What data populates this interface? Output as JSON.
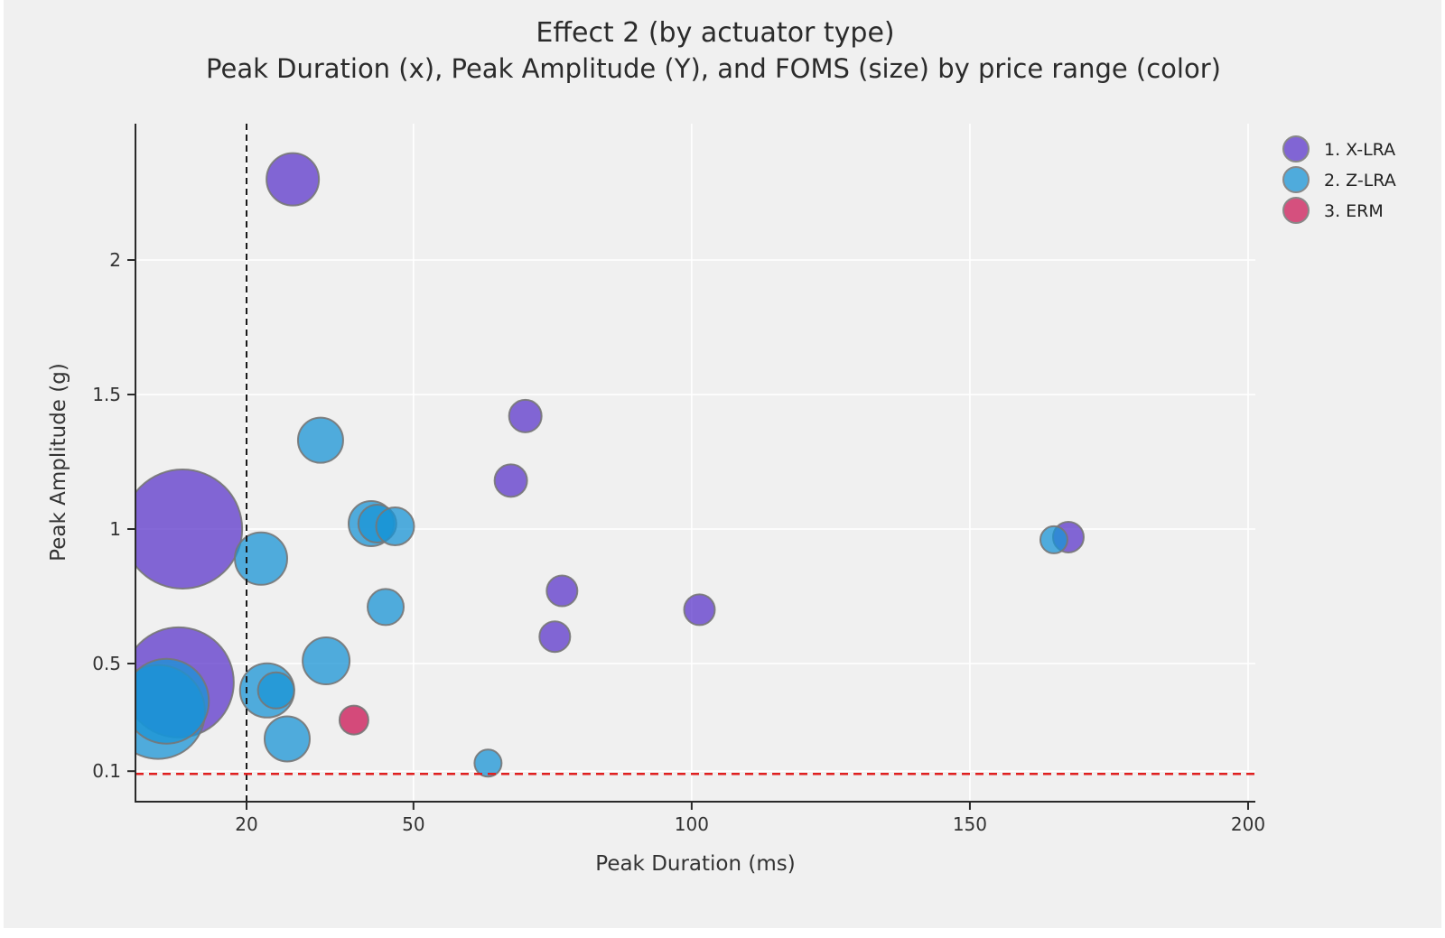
{
  "figure": {
    "title": "Effect 2 (by actuator type)",
    "subtitle": "Peak Duration (x), Peak Amplitude (Y), and FOMS (size) by price range (color)",
    "background": "#f0f0f0"
  },
  "axes": {
    "x": {
      "label": "Peak Duration (ms)",
      "ticks": [
        {
          "value": 20,
          "label": "20"
        },
        {
          "value": 50,
          "label": "50"
        },
        {
          "value": 100,
          "label": "100"
        },
        {
          "value": 150,
          "label": "150"
        },
        {
          "value": 200,
          "label": "200"
        }
      ],
      "range": [
        0,
        201.3
      ]
    },
    "y": {
      "label": "Peak Amplitude (g)",
      "ticks": [
        {
          "value": 0.1,
          "label": "0.1"
        },
        {
          "value": 0.5,
          "label": "0.5"
        },
        {
          "value": 1,
          "label": "1"
        },
        {
          "value": 1.5,
          "label": "1.5"
        },
        {
          "value": 2,
          "label": "2"
        }
      ],
      "range": [
        -0.01,
        2.51
      ]
    }
  },
  "chart_data": {
    "type": "scatter",
    "subtype": "bubble",
    "size_encodes": "FOMS",
    "color_encodes": "actuator type / price range",
    "grid": "white major gridlines on gray background",
    "legend_position": "top-right",
    "series": [
      {
        "name": "1. X-LRA",
        "fill_color": "#5C37CB",
        "fill_opacity": 0.75,
        "legend_color": "#8165D4",
        "points": [
          {
            "x": 28.3,
            "y": 2.3,
            "r": 29
          },
          {
            "x": 8.5,
            "y": 1.0,
            "r": 66
          },
          {
            "x": 7.8,
            "y": 0.43,
            "r": 61
          },
          {
            "x": 70.1,
            "y": 1.42,
            "r": 18
          },
          {
            "x": 67.5,
            "y": 1.18,
            "r": 18
          },
          {
            "x": 76.7,
            "y": 0.77,
            "r": 17
          },
          {
            "x": 75.4,
            "y": 0.6,
            "r": 17
          },
          {
            "x": 101.4,
            "y": 0.7,
            "r": 17
          },
          {
            "x": 167.7,
            "y": 0.97,
            "r": 17
          }
        ]
      },
      {
        "name": "2. Z-LRA",
        "fill_color": "#1994D5",
        "fill_opacity": 0.75,
        "legend_color": "#4FABDC",
        "points": [
          {
            "x": 33.3,
            "y": 1.33,
            "r": 25
          },
          {
            "x": 22.6,
            "y": 0.89,
            "r": 29
          },
          {
            "x": 42.4,
            "y": 1.02,
            "r": 25
          },
          {
            "x": 43.5,
            "y": 1.02,
            "r": 21
          },
          {
            "x": 46.7,
            "y": 1.01,
            "r": 21
          },
          {
            "x": 45.0,
            "y": 0.71,
            "r": 20
          },
          {
            "x": 34.3,
            "y": 0.51,
            "r": 26
          },
          {
            "x": 23.7,
            "y": 0.4,
            "r": 30
          },
          {
            "x": 25.3,
            "y": 0.4,
            "r": 20
          },
          {
            "x": 4.1,
            "y": 0.32,
            "r": 52
          },
          {
            "x": 5.6,
            "y": 0.36,
            "r": 47
          },
          {
            "x": 27.3,
            "y": 0.22,
            "r": 25
          },
          {
            "x": 63.4,
            "y": 0.13,
            "r": 15
          },
          {
            "x": 165.1,
            "y": 0.96,
            "r": 15
          }
        ]
      },
      {
        "name": "3. ERM",
        "fill_color": "#CC1B58",
        "fill_opacity": 0.78,
        "legend_color": "#D5507E",
        "points": [
          {
            "x": 39.3,
            "y": 0.29,
            "r": 16
          }
        ]
      }
    ],
    "annotations": {
      "vline": {
        "x": 20,
        "style": "dashed",
        "color": "#1a1a1a"
      },
      "hline": {
        "y": 0.1,
        "style": "dashed",
        "color": "#e02020"
      }
    },
    "style": {
      "grid_color": "#ffffff",
      "spine_color": "#2a2a2a",
      "bubble_edge_color": "#777777"
    }
  }
}
